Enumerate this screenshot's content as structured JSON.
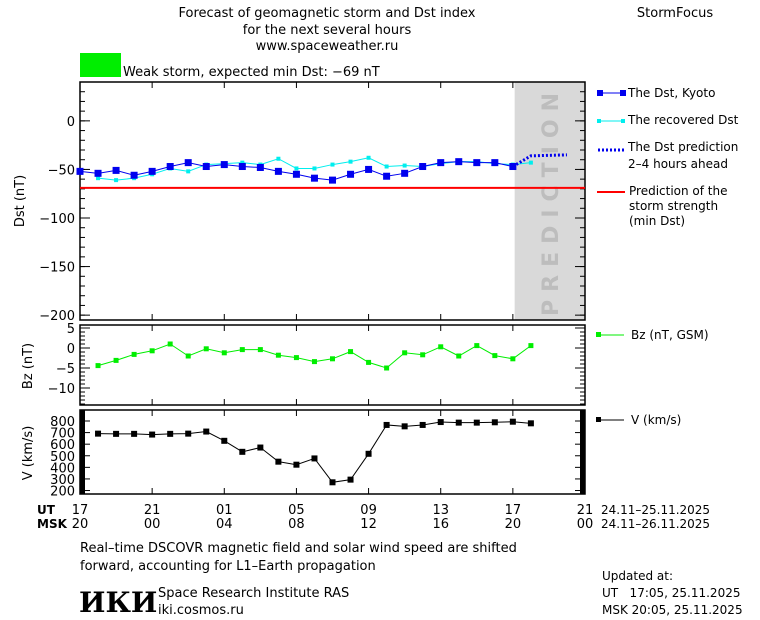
{
  "header": {
    "title_lines": [
      "Forecast of geomagnetic storm and Dst index",
      "for the next several hours",
      "www.spaceweather.ru"
    ],
    "brand": "StormFocus",
    "status_text": "Weak storm, expected min Dst: −69 nT",
    "status_color": "#00ee00"
  },
  "prediction_label": "PREDICTION",
  "legend": {
    "dst_kyoto": "The Dst, Kyoto",
    "recovered": "The recovered Dst",
    "prediction_lines": [
      "The Dst prediction",
      "2–4 hours ahead"
    ],
    "strength_lines": [
      "Prediction of the",
      "storm strength",
      "(min Dst)"
    ],
    "bz": "Bz (nT, GSM)",
    "v": "V (km/s)"
  },
  "colors": {
    "dst": "#0000ee",
    "recovered": "#00eeee",
    "prediction": "#0000ee",
    "strength": "#ff0000",
    "bz": "#00ee00",
    "v": "#000000",
    "shade": "#d9d9d9"
  },
  "chart_data": [
    {
      "type": "line",
      "title": "Dst",
      "ylabel": "Dst (nT)",
      "ylim": [
        -205,
        40
      ],
      "yticks": [
        0,
        -50,
        -100,
        -150,
        -200
      ],
      "x_unit": "hours since 17 UT 24.11",
      "series": [
        {
          "name": "The Dst, Kyoto",
          "x_start": 0,
          "values": [
            -52,
            -54,
            -51,
            -56,
            -52,
            -47,
            -43,
            -47,
            -45,
            -47,
            -48,
            -52,
            -55,
            -59,
            -61,
            -55,
            -50,
            -57,
            -54,
            -47,
            -43,
            -42,
            -43,
            -43,
            -47
          ]
        },
        {
          "name": "The recovered Dst",
          "x_start": 1,
          "values": [
            -59,
            -61,
            -59,
            -55,
            -49,
            -52,
            -45,
            -44,
            -43,
            -45,
            -39,
            -49,
            -49,
            -45,
            -42,
            -38,
            -47,
            -46,
            -47,
            -44,
            -42,
            -42,
            -44,
            -45,
            -43
          ]
        },
        {
          "name": "The Dst prediction 2-4 hours ahead",
          "x": [
            24,
            25,
            27
          ],
          "values": [
            -47,
            -36,
            -35
          ]
        }
      ],
      "min_dst_prediction": -69,
      "prediction_start_hour": 24.1
    },
    {
      "type": "line",
      "ylabel": "Bz (nT)",
      "ylim": [
        -14.25,
        5.75
      ],
      "yticks": [
        5,
        0,
        -5,
        -10
      ],
      "series": [
        {
          "name": "Bz (nT, GSM)",
          "x_start": 1,
          "values": [
            -4.4,
            -3.1,
            -1.6,
            -0.7,
            1.0,
            -2.0,
            -0.2,
            -1.2,
            -0.4,
            -0.4,
            -1.8,
            -2.4,
            -3.4,
            -2.7,
            -0.9,
            -3.6,
            -5.0,
            -1.2,
            -1.7,
            0.3,
            -2.0,
            0.6,
            -1.9,
            -2.7,
            0.6
          ]
        }
      ]
    },
    {
      "type": "line",
      "ylabel": "V (km/s)",
      "ylim": [
        170,
        895
      ],
      "yticks": [
        800,
        700,
        600,
        500,
        400,
        300,
        200
      ],
      "series": [
        {
          "name": "V (km/s)",
          "x_start": 1,
          "values": [
            691,
            689,
            689,
            683,
            689,
            691,
            709,
            629,
            534,
            571,
            449,
            423,
            477,
            271,
            294,
            517,
            766,
            754,
            766,
            791,
            786,
            786,
            789,
            794,
            780
          ]
        }
      ]
    }
  ],
  "xaxis": {
    "ut_label": "UT",
    "msk_label": "MSK",
    "ut_ticks": [
      "17",
      "21",
      "01",
      "05",
      "09",
      "13",
      "17",
      "21"
    ],
    "msk_ticks": [
      "20",
      "00",
      "04",
      "08",
      "12",
      "16",
      "20",
      "00"
    ],
    "ut_range": "24.11–25.11.2025",
    "msk_range": "24.11–26.11.2025"
  },
  "footer": {
    "note_lines": [
      "Real–time DSCOVR magnetic field and solar wind speed are shifted",
      "forward, accounting for L1–Earth propagation"
    ],
    "logo": "ИКИ",
    "institute": "Space Research Institute RAS",
    "site": "iki.cosmos.ru",
    "updated_label": "Updated at:",
    "updated_ut": "UT   17:05, 25.11.2025",
    "updated_msk": "MSK 20:05, 25.11.2025"
  }
}
